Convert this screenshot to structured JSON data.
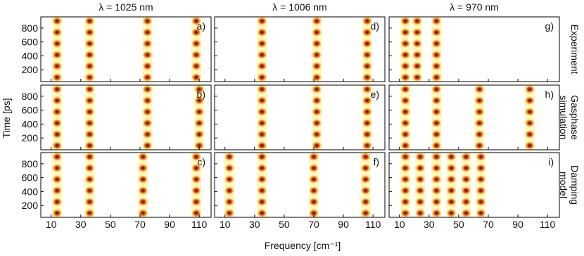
{
  "figure": {
    "x_label": "Frequency [cm⁻¹]",
    "y_label": "Time [ps]",
    "xlim": [
      3,
      118
    ],
    "ylim": [
      30,
      960
    ],
    "xticks": [
      10,
      30,
      50,
      70,
      90,
      110
    ],
    "yticks": [
      200,
      400,
      600,
      800
    ]
  },
  "chart_data": [
    {
      "type": "heatmap",
      "title": "λ = 1025 nm",
      "label": "a)",
      "peaks": [
        14,
        36,
        75,
        108
      ]
    },
    {
      "type": "heatmap",
      "title": "λ = 1006 nm",
      "label": "d)",
      "peaks": [
        35,
        72,
        106
      ]
    },
    {
      "type": "heatmap",
      "title": "λ = 970 nm",
      "label": "g)",
      "row_label": [
        "Experiment"
      ],
      "peaks": [
        14,
        22,
        35
      ]
    },
    {
      "type": "heatmap",
      "label": "b)",
      "peaks": [
        14,
        36,
        75,
        110
      ]
    },
    {
      "type": "heatmap",
      "label": "e)",
      "peaks": [
        35,
        72,
        106
      ]
    },
    {
      "type": "heatmap",
      "label": "h)",
      "row_label": [
        "Gasphase",
        "simulation"
      ],
      "peaks": [
        14,
        35,
        64,
        98
      ]
    },
    {
      "type": "heatmap",
      "label": "c)",
      "peaks": [
        14,
        36,
        72,
        108
      ]
    },
    {
      "type": "heatmap",
      "label": "f)",
      "peaks": [
        13,
        35,
        70,
        105
      ]
    },
    {
      "type": "heatmap",
      "label": "i)",
      "row_label": [
        "Damping",
        "model"
      ],
      "peaks": [
        14,
        24,
        35,
        45,
        55,
        65
      ]
    }
  ]
}
